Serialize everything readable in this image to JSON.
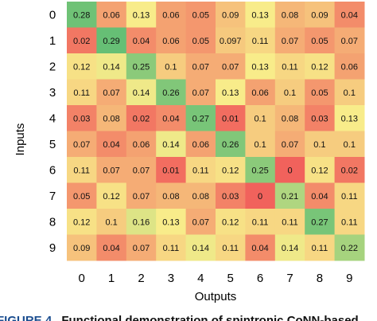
{
  "chart_data": {
    "type": "heatmap",
    "xlabel": "Outputs",
    "ylabel": "Inputs",
    "x_categories": [
      "0",
      "1",
      "2",
      "3",
      "4",
      "5",
      "6",
      "7",
      "8",
      "9"
    ],
    "y_categories": [
      "0",
      "1",
      "2",
      "3",
      "4",
      "5",
      "6",
      "7",
      "8",
      "9"
    ],
    "values": [
      [
        0.28,
        0.06,
        0.13,
        0.06,
        0.05,
        0.09,
        0.13,
        0.08,
        0.09,
        0.04
      ],
      [
        0.02,
        0.29,
        0.04,
        0.06,
        0.05,
        0.097,
        0.11,
        0.07,
        0.05,
        0.07
      ],
      [
        0.12,
        0.14,
        0.25,
        0.1,
        0.07,
        0.07,
        0.13,
        0.11,
        0.12,
        0.06
      ],
      [
        0.11,
        0.07,
        0.14,
        0.26,
        0.07,
        0.13,
        0.06,
        0.1,
        0.05,
        0.1
      ],
      [
        0.03,
        0.08,
        0.02,
        0.04,
        0.27,
        0.01,
        0.1,
        0.08,
        0.03,
        0.13
      ],
      [
        0.07,
        0.04,
        0.06,
        0.14,
        0.06,
        0.26,
        0.1,
        0.07,
        0.1,
        0.1
      ],
      [
        0.11,
        0.07,
        0.07,
        0.01,
        0.11,
        0.12,
        0.25,
        0,
        0.12,
        0.02
      ],
      [
        0.05,
        0.12,
        0.07,
        0.08,
        0.08,
        0.03,
        0,
        0.21,
        0.04,
        0.11
      ],
      [
        0.12,
        0.1,
        0.16,
        0.13,
        0.07,
        0.12,
        0.11,
        0.11,
        0.27,
        0.11
      ],
      [
        0.09,
        0.04,
        0.07,
        0.11,
        0.14,
        0.11,
        0.04,
        0.14,
        0.11,
        0.22
      ]
    ],
    "labels": [
      [
        "0.28",
        "0.06",
        "0.13",
        "0.06",
        "0.05",
        "0.09",
        "0.13",
        "0.08",
        "0.09",
        "0.04"
      ],
      [
        "0.02",
        "0.29",
        "0.04",
        "0.06",
        "0.05",
        "0.097",
        "0.11",
        "0.07",
        "0.05",
        "0.07"
      ],
      [
        "0.12",
        "0.14",
        "0.25",
        "0.1",
        "0.07",
        "0.07",
        "0.13",
        "0.11",
        "0.12",
        "0.06"
      ],
      [
        "0.11",
        "0.07",
        "0.14",
        "0.26",
        "0.07",
        "0.13",
        "0.06",
        "0.1",
        "0.05",
        "0.1"
      ],
      [
        "0.03",
        "0.08",
        "0.02",
        "0.04",
        "0.27",
        "0.01",
        "0.1",
        "0.08",
        "0.03",
        "0.13"
      ],
      [
        "0.07",
        "0.04",
        "0.06",
        "0.14",
        "0.06",
        "0.26",
        "0.1",
        "0.07",
        "0.1",
        "0.1"
      ],
      [
        "0.11",
        "0.07",
        "0.07",
        "0.01",
        "0.11",
        "0.12",
        "0.25",
        "0",
        "0.12",
        "0.02"
      ],
      [
        "0.05",
        "0.12",
        "0.07",
        "0.08",
        "0.08",
        "0.03",
        "0",
        "0.21",
        "0.04",
        "0.11"
      ],
      [
        "0.12",
        "0.1",
        "0.16",
        "0.13",
        "0.07",
        "0.12",
        "0.11",
        "0.11",
        "0.27",
        "0.11"
      ],
      [
        "0.09",
        "0.04",
        "0.07",
        "0.11",
        "0.14",
        "0.11",
        "0.04",
        "0.14",
        "0.11",
        "0.22"
      ]
    ],
    "color_scale": {
      "low": "#f1625c",
      "mid": "#f8ec8a",
      "high": "#66bf75",
      "low_value": 0,
      "mid_value": 0.13,
      "high_value": 0.29
    }
  },
  "caption": {
    "figure_label": "FIGURE 4",
    "text": "Functional demonstration of spintronic CoNN-based",
    "color_label": "#1a4d8f",
    "color_text": "#111111"
  }
}
